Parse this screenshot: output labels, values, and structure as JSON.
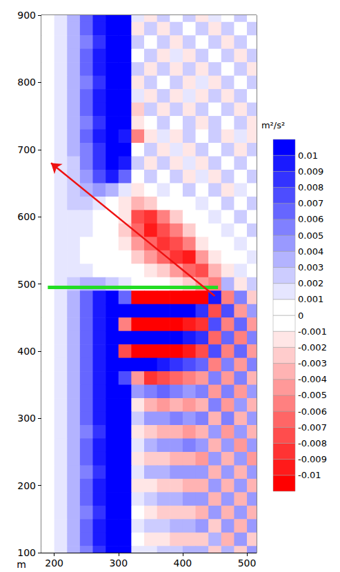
{
  "chart_data": {
    "type": "heatmap",
    "x_label": "m",
    "xlim": [
      180,
      515
    ],
    "xticks": [
      200,
      300,
      400,
      500
    ],
    "ylim": [
      100,
      900
    ],
    "yticks": [
      100,
      200,
      300,
      400,
      500,
      600,
      700,
      800,
      900
    ],
    "x": [
      190,
      210,
      230,
      250,
      270,
      290,
      310,
      330,
      350,
      370,
      390,
      410,
      430,
      450,
      470,
      490,
      510
    ],
    "y": [
      900,
      880,
      860,
      840,
      820,
      800,
      780,
      760,
      740,
      720,
      700,
      680,
      660,
      640,
      620,
      600,
      580,
      560,
      540,
      520,
      500,
      480,
      460,
      440,
      420,
      400,
      380,
      360,
      340,
      320,
      300,
      280,
      260,
      240,
      220,
      200,
      180,
      160,
      140,
      120,
      100
    ],
    "z": [
      [
        0,
        0.001,
        0.003,
        0.006,
        0.009,
        0.011,
        0.01,
        0.001,
        -0.002,
        0.002,
        -0.001,
        0.002,
        -0.002,
        0.001,
        -0.001,
        0.002,
        -0.001
      ],
      [
        0,
        0.001,
        0.003,
        0.006,
        0.009,
        0.011,
        0.011,
        -0.002,
        0.002,
        -0.002,
        0.002,
        -0.001,
        0.002,
        -0.002,
        0.002,
        -0.001,
        0.002
      ],
      [
        0,
        0.001,
        0.003,
        0.005,
        0.008,
        0.011,
        0.01,
        0.002,
        -0.001,
        0.002,
        -0.002,
        0.002,
        -0.001,
        0.002,
        -0.002,
        0.002,
        -0.001
      ],
      [
        0,
        0.001,
        0.003,
        0.006,
        0.009,
        0.011,
        0.011,
        -0.001,
        0.002,
        -0.002,
        0.001,
        -0.002,
        0.002,
        -0.001,
        0.002,
        -0.002,
        0.002
      ],
      [
        0,
        0.001,
        0.003,
        0.006,
        0.009,
        0.011,
        0.01,
        0.002,
        -0.002,
        0.002,
        -0.002,
        0.002,
        -0.002,
        0.002,
        -0.001,
        0.002,
        -0.002
      ],
      [
        0,
        0.001,
        0.003,
        0.005,
        0.008,
        0.011,
        0.011,
        -0.002,
        0.002,
        -0.001,
        0.002,
        -0.002,
        0.001,
        -0.002,
        0.002,
        -0.001,
        0.002
      ],
      [
        0,
        0.001,
        0.003,
        0.006,
        0.009,
        0.011,
        0.01,
        0.001,
        -0.002,
        0.002,
        -0.002,
        0.001,
        -0.002,
        0.002,
        -0.002,
        0.002,
        -0.001
      ],
      [
        0,
        0.001,
        0.003,
        0.006,
        0.009,
        0.011,
        0.011,
        -0.003,
        0.002,
        -0.002,
        0.002,
        -0.002,
        0.002,
        -0.001,
        0.002,
        -0.002,
        0.002
      ],
      [
        0,
        0.001,
        0.003,
        0.005,
        0.008,
        0.011,
        0.01,
        -0.002,
        -0.001,
        0.002,
        -0.001,
        0.002,
        -0.002,
        0.002,
        -0.001,
        0.002,
        -0.002
      ],
      [
        0,
        0.001,
        0.003,
        0.006,
        0.009,
        0.011,
        0.009,
        -0.006,
        -0.002,
        0.001,
        -0.002,
        0.002,
        -0.001,
        0.002,
        -0.002,
        0.001,
        -0.002
      ],
      [
        0,
        0.001,
        0.003,
        0.005,
        0.008,
        0.01,
        0.01,
        -0.001,
        0.002,
        -0.002,
        0.001,
        -0.002,
        0.002,
        -0.001,
        0.002,
        -0.002,
        0.002
      ],
      [
        0,
        0.001,
        0.002,
        0.005,
        0.008,
        0.01,
        0.009,
        0.002,
        -0.002,
        0.002,
        -0.002,
        0.001,
        -0.002,
        0.002,
        -0.001,
        0.002,
        -0.001
      ],
      [
        0,
        0.001,
        0.002,
        0.004,
        0.007,
        0.009,
        0.006,
        -0.001,
        0.002,
        -0.001,
        0.002,
        -0.002,
        0.001,
        -0.002,
        0.002,
        -0.001,
        0.002
      ],
      [
        0,
        0.001,
        0.002,
        0.003,
        0.004,
        0.003,
        0.001,
        -0.002,
        -0.001,
        0.001,
        -0.001,
        0.002,
        -0.001,
        0.002,
        -0.002,
        0.001,
        -0.001
      ],
      [
        0,
        0.001,
        0.002,
        0.002,
        0.001,
        0,
        -0.002,
        -0.004,
        -0.003,
        -0.001,
        0,
        -0.001,
        0.001,
        -0.001,
        0.002,
        -0.001,
        0.002
      ],
      [
        0,
        0.001,
        0.001,
        0.001,
        0,
        0,
        -0.002,
        -0.008,
        -0.009,
        -0.006,
        -0.003,
        -0.001,
        0,
        0.001,
        -0.001,
        0.002,
        -0.001
      ],
      [
        0,
        0.001,
        0.001,
        0.001,
        0,
        -0.001,
        -0.003,
        -0.007,
        -0.01,
        -0.008,
        -0.006,
        -0.003,
        -0.001,
        0,
        0.001,
        -0.001,
        0.002
      ],
      [
        0,
        0.001,
        0.001,
        0,
        0,
        -0.001,
        -0.002,
        -0.005,
        -0.007,
        -0.009,
        -0.008,
        -0.006,
        -0.002,
        -0.001,
        -0.001,
        0.001,
        -0.001
      ],
      [
        0,
        0.001,
        0.001,
        0,
        0,
        0,
        -0.001,
        -0.003,
        -0.005,
        -0.007,
        -0.009,
        -0.01,
        -0.005,
        -0.002,
        -0.001,
        -0.001,
        0.001
      ],
      [
        0,
        0.001,
        0.001,
        0.001,
        0,
        0,
        0,
        -0.001,
        -0.002,
        -0.003,
        -0.005,
        -0.007,
        -0.008,
        -0.004,
        -0.002,
        0.001,
        -0.001
      ],
      [
        0,
        0.001,
        0.002,
        0.003,
        0.003,
        0.002,
        0.001,
        0,
        -0.001,
        -0.001,
        -0.002,
        -0.003,
        -0.005,
        -0.006,
        0.003,
        -0.002,
        0.002
      ],
      [
        0,
        0.001,
        0.003,
        0.006,
        0.009,
        0.011,
        0.006,
        -0.012,
        -0.012,
        -0.012,
        -0.012,
        -0.012,
        -0.012,
        0.009,
        -0.006,
        0.005,
        -0.003
      ],
      [
        0,
        0.001,
        0.003,
        0.006,
        0.009,
        0.011,
        0.012,
        0.012,
        0.012,
        0.012,
        0.011,
        0.01,
        0.008,
        -0.008,
        0.007,
        -0.005,
        0.004
      ],
      [
        0,
        0.001,
        0.003,
        0.006,
        0.009,
        0.011,
        -0.006,
        -0.012,
        -0.012,
        -0.012,
        -0.011,
        -0.01,
        -0.009,
        0.007,
        -0.006,
        0.006,
        -0.005
      ],
      [
        0,
        0.001,
        0.003,
        0.006,
        0.009,
        0.012,
        0.012,
        0.012,
        0.011,
        0.011,
        0.01,
        0.009,
        0.008,
        -0.007,
        0.006,
        -0.006,
        0.005
      ],
      [
        0,
        0.001,
        0.003,
        0.006,
        0.009,
        0.011,
        -0.008,
        -0.012,
        -0.012,
        -0.011,
        -0.011,
        -0.01,
        -0.008,
        0.007,
        -0.006,
        0.006,
        -0.005
      ],
      [
        0,
        0.001,
        0.003,
        0.006,
        0.009,
        0.012,
        0.012,
        0.011,
        0.01,
        0.009,
        0.008,
        0.007,
        0.006,
        -0.006,
        0.005,
        -0.005,
        0.005
      ],
      [
        0,
        0.001,
        0.003,
        0.006,
        0.009,
        0.011,
        0.007,
        -0.005,
        -0.009,
        -0.008,
        -0.007,
        -0.006,
        -0.005,
        0.005,
        -0.005,
        0.005,
        -0.004
      ],
      [
        0,
        0.001,
        0.003,
        0.006,
        0.009,
        0.011,
        0.011,
        0.004,
        0.005,
        0.006,
        0.005,
        0.004,
        0.005,
        -0.005,
        0.005,
        -0.005,
        0.004
      ],
      [
        0,
        0.001,
        0.003,
        0.006,
        0.009,
        0.011,
        0.01,
        -0.002,
        -0.004,
        -0.005,
        -0.004,
        -0.005,
        -0.004,
        0.005,
        -0.005,
        0.004,
        -0.004
      ],
      [
        0,
        0.001,
        0.003,
        0.006,
        0.009,
        0.011,
        0.01,
        0.002,
        0.004,
        0.004,
        0.005,
        0.004,
        0.005,
        -0.004,
        0.005,
        -0.004,
        0.004
      ],
      [
        0,
        0.001,
        0.003,
        0.005,
        0.008,
        0.011,
        0.01,
        -0.002,
        -0.003,
        -0.004,
        -0.004,
        -0.005,
        -0.004,
        0.004,
        -0.005,
        0.004,
        -0.004
      ],
      [
        0,
        0.001,
        0.003,
        0.006,
        0.009,
        0.011,
        0.011,
        0.001,
        0.003,
        0.004,
        0.004,
        0.005,
        0.004,
        -0.004,
        0.004,
        -0.005,
        0.004
      ],
      [
        0,
        0.001,
        0.003,
        0.006,
        0.009,
        0.011,
        0.01,
        -0.002,
        -0.003,
        -0.003,
        -0.004,
        -0.004,
        -0.005,
        0.004,
        -0.004,
        0.004,
        -0.005
      ],
      [
        0,
        0.001,
        0.003,
        0.005,
        0.008,
        0.011,
        0.01,
        0.001,
        0.003,
        0.003,
        0.004,
        0.004,
        0.004,
        -0.004,
        0.004,
        -0.004,
        0.004
      ],
      [
        0,
        0.001,
        0.003,
        0.006,
        0.009,
        0.011,
        0.011,
        -0.002,
        -0.002,
        -0.003,
        -0.003,
        -0.004,
        -0.004,
        0.004,
        -0.004,
        0.004,
        -0.004
      ],
      [
        0,
        0.001,
        0.003,
        0.006,
        0.009,
        0.011,
        0.01,
        0.001,
        0.002,
        0.003,
        0.003,
        0.004,
        0.004,
        -0.004,
        0.004,
        -0.004,
        0.004
      ],
      [
        0,
        0.001,
        0.003,
        0.005,
        0.008,
        0.011,
        0.01,
        -0.001,
        -0.002,
        -0.003,
        -0.003,
        -0.003,
        -0.004,
        0.004,
        -0.004,
        0.004,
        -0.004
      ],
      [
        0,
        0.001,
        0.003,
        0.006,
        0.009,
        0.011,
        0.011,
        0.001,
        0.002,
        0.002,
        0.003,
        0.003,
        0.004,
        -0.003,
        0.004,
        -0.004,
        0.004
      ],
      [
        0,
        0.001,
        0.003,
        0.006,
        0.009,
        0.011,
        0.01,
        -0.001,
        -0.002,
        -0.002,
        -0.003,
        -0.003,
        -0.003,
        0.003,
        -0.004,
        0.004,
        -0.003
      ],
      [
        0,
        0.001,
        0.003,
        0.005,
        0.008,
        0.011,
        0.01,
        0.001,
        0.001,
        0.002,
        0.002,
        0.003,
        0.003,
        -0.003,
        0.003,
        -0.003,
        0.004
      ]
    ],
    "colorbar": {
      "title": "m²/s²",
      "range": [
        -0.011,
        0.011
      ],
      "ticks": [
        -0.01,
        -0.009,
        -0.008,
        -0.007,
        -0.006,
        -0.005,
        -0.004,
        -0.003,
        -0.002,
        -0.001,
        0,
        0.001,
        0.002,
        0.003,
        0.004,
        0.005,
        0.006,
        0.007,
        0.008,
        0.009,
        0.01
      ],
      "colors": [
        "#ff0000",
        "#ff1a1a",
        "#ff3333",
        "#ff4d4d",
        "#ff6666",
        "#ff8080",
        "#ff9999",
        "#ffb3b3",
        "#ffcccc",
        "#ffe6e6",
        "#ffffff",
        "#ffffff",
        "#e6e6ff",
        "#ccccff",
        "#b3b3ff",
        "#9999ff",
        "#8080ff",
        "#6666ff",
        "#4d4dff",
        "#3333ff",
        "#1a1aff",
        "#0000ff"
      ]
    },
    "lines": [
      {
        "x": [
          190,
          455
        ],
        "y": [
          495,
          495
        ],
        "color": "#22dd22"
      }
    ],
    "arrows": [
      {
        "x": [
          450,
          195
        ],
        "y": [
          482,
          680
        ],
        "color": "#ee1111"
      }
    ]
  }
}
